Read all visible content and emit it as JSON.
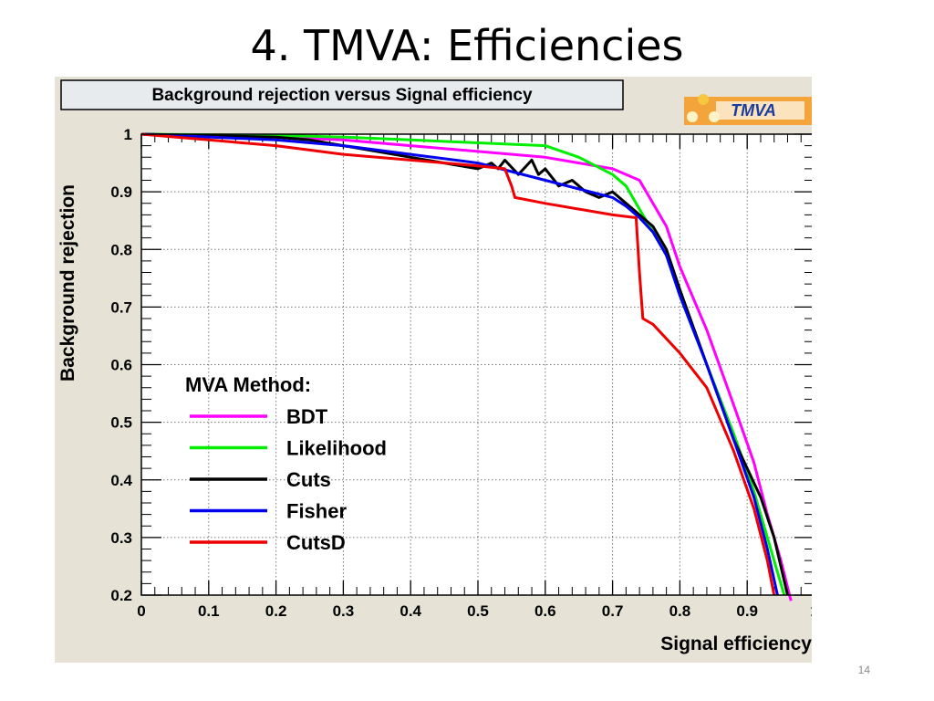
{
  "slide": {
    "title": "4. TMVA: Efficiencies",
    "page_number": "14"
  },
  "colors": {
    "panel_bg": "#e6e3d6",
    "plot_bg": "#ffffff",
    "title_box_bg": "#e7ebee",
    "logo_bg": "#f3a53b"
  },
  "chart_data": {
    "type": "line",
    "title": "Background rejection versus Signal efficiency",
    "xlabel": "Signal efficiency",
    "ylabel": "Background rejection",
    "xlim": [
      0,
      1
    ],
    "ylim": [
      0.2,
      1
    ],
    "xticks": [
      "0",
      "0.1",
      "0.2",
      "0.3",
      "0.4",
      "0.5",
      "0.6",
      "0.7",
      "0.8",
      "0.9",
      "1"
    ],
    "yticks": [
      "0.2",
      "0.3",
      "0.4",
      "0.5",
      "0.6",
      "0.7",
      "0.8",
      "0.9",
      "1"
    ],
    "grid": true,
    "logo_text": "TMVA",
    "legend": {
      "title": "MVA Method:",
      "position": "lower-left"
    },
    "series": [
      {
        "name": "BDT",
        "color": "#ff00ff",
        "x": [
          0,
          0.2,
          0.3,
          0.4,
          0.5,
          0.6,
          0.7,
          0.74,
          0.76,
          0.78,
          0.8,
          0.84,
          0.88,
          0.91,
          0.93,
          0.95,
          0.965
        ],
        "y": [
          1,
          0.995,
          0.99,
          0.98,
          0.97,
          0.96,
          0.94,
          0.92,
          0.88,
          0.84,
          0.77,
          0.66,
          0.53,
          0.43,
          0.34,
          0.26,
          0.19
        ]
      },
      {
        "name": "Likelihood",
        "color": "#00ee00",
        "x": [
          0,
          0.2,
          0.3,
          0.4,
          0.5,
          0.6,
          0.65,
          0.7,
          0.72,
          0.74,
          0.76,
          0.78,
          0.8,
          0.84,
          0.88,
          0.91,
          0.93,
          0.955
        ],
        "y": [
          1,
          0.998,
          0.995,
          0.99,
          0.985,
          0.98,
          0.96,
          0.93,
          0.91,
          0.87,
          0.83,
          0.79,
          0.72,
          0.6,
          0.48,
          0.38,
          0.3,
          0.2
        ]
      },
      {
        "name": "Cuts",
        "color": "#000000",
        "x": [
          0,
          0.2,
          0.25,
          0.3,
          0.35,
          0.4,
          0.45,
          0.5,
          0.52,
          0.53,
          0.54,
          0.56,
          0.58,
          0.59,
          0.6,
          0.62,
          0.64,
          0.66,
          0.68,
          0.7,
          0.72,
          0.74,
          0.76,
          0.78,
          0.8,
          0.84,
          0.88,
          0.92,
          0.94,
          0.96
        ],
        "y": [
          1,
          0.995,
          0.99,
          0.98,
          0.97,
          0.96,
          0.95,
          0.94,
          0.95,
          0.94,
          0.955,
          0.93,
          0.955,
          0.93,
          0.94,
          0.91,
          0.92,
          0.9,
          0.89,
          0.9,
          0.88,
          0.86,
          0.84,
          0.8,
          0.73,
          0.6,
          0.47,
          0.37,
          0.3,
          0.2
        ]
      },
      {
        "name": "Fisher",
        "color": "#0000ee",
        "x": [
          0,
          0.2,
          0.3,
          0.4,
          0.5,
          0.55,
          0.6,
          0.65,
          0.7,
          0.72,
          0.74,
          0.76,
          0.78,
          0.8,
          0.84,
          0.88,
          0.91,
          0.93,
          0.945
        ],
        "y": [
          1,
          0.99,
          0.98,
          0.965,
          0.95,
          0.935,
          0.92,
          0.905,
          0.89,
          0.875,
          0.855,
          0.83,
          0.79,
          0.72,
          0.6,
          0.47,
          0.37,
          0.28,
          0.2
        ]
      },
      {
        "name": "CutsD",
        "color": "#ee0000",
        "x": [
          0,
          0.1,
          0.2,
          0.3,
          0.4,
          0.5,
          0.54,
          0.55,
          0.555,
          0.6,
          0.65,
          0.7,
          0.735,
          0.74,
          0.745,
          0.76,
          0.8,
          0.84,
          0.88,
          0.91,
          0.93,
          0.94
        ],
        "y": [
          1,
          0.99,
          0.98,
          0.965,
          0.955,
          0.945,
          0.94,
          0.91,
          0.89,
          0.88,
          0.87,
          0.86,
          0.855,
          0.76,
          0.68,
          0.67,
          0.62,
          0.56,
          0.45,
          0.35,
          0.26,
          0.2
        ]
      }
    ]
  }
}
